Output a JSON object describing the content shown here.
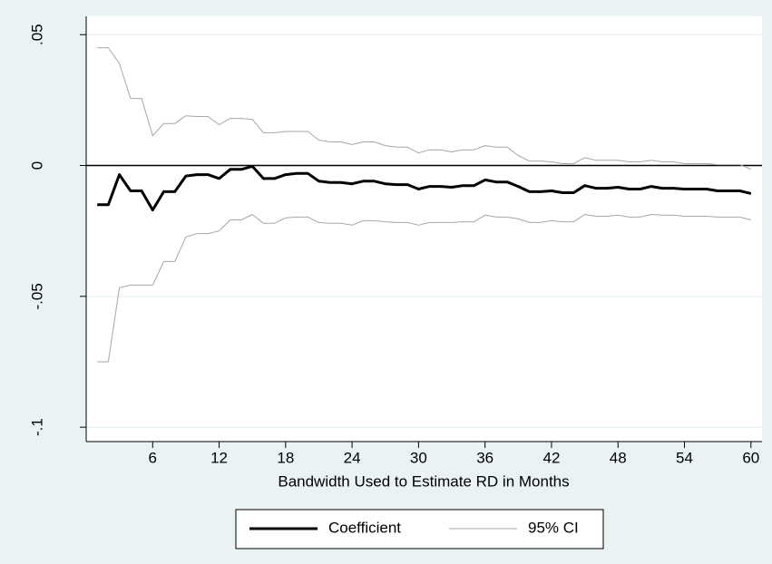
{
  "chart_data": {
    "type": "line",
    "x_label": "Bandwidth Used to Estimate RD in Months",
    "x": [
      1,
      2,
      3,
      4,
      5,
      6,
      7,
      8,
      9,
      10,
      11,
      12,
      13,
      14,
      15,
      16,
      17,
      18,
      19,
      20,
      21,
      22,
      23,
      24,
      25,
      26,
      27,
      28,
      29,
      30,
      31,
      32,
      33,
      34,
      35,
      36,
      37,
      38,
      39,
      40,
      41,
      42,
      43,
      44,
      45,
      46,
      47,
      48,
      49,
      50,
      51,
      52,
      53,
      54,
      55,
      56,
      57,
      58,
      59,
      60
    ],
    "series": [
      {
        "name": "Coefficient",
        "color": "#000000",
        "values": [
          -0.015,
          -0.015,
          -0.0035,
          -0.0097,
          -0.0097,
          -0.017,
          -0.01,
          -0.01,
          -0.004,
          -0.0035,
          -0.0035,
          -0.005,
          -0.0015,
          -0.0015,
          -0.0003,
          -0.005,
          -0.005,
          -0.0035,
          -0.003,
          -0.003,
          -0.006,
          -0.0065,
          -0.0065,
          -0.007,
          -0.006,
          -0.006,
          -0.007,
          -0.0073,
          -0.0073,
          -0.009,
          -0.008,
          -0.008,
          -0.0083,
          -0.0077,
          -0.0077,
          -0.0055,
          -0.0063,
          -0.0063,
          -0.008,
          -0.01,
          -0.01,
          -0.0097,
          -0.0104,
          -0.0104,
          -0.0077,
          -0.0087,
          -0.0087,
          -0.0083,
          -0.009,
          -0.009,
          -0.008,
          -0.0087,
          -0.0087,
          -0.009,
          -0.009,
          -0.009,
          -0.0097,
          -0.0097,
          -0.0097,
          -0.0107
        ]
      },
      {
        "name": "95% CI",
        "color": "#a6a6a6",
        "upper": [
          0.045,
          0.045,
          0.039,
          0.0256,
          0.0256,
          0.0114,
          0.016,
          0.016,
          0.019,
          0.0187,
          0.0187,
          0.0156,
          0.018,
          0.018,
          0.0176,
          0.0125,
          0.0125,
          0.013,
          0.013,
          0.013,
          0.0097,
          0.009,
          0.009,
          0.008,
          0.009,
          0.009,
          0.0076,
          0.007,
          0.007,
          0.0048,
          0.006,
          0.006,
          0.0052,
          0.006,
          0.006,
          0.0076,
          0.007,
          0.007,
          0.0038,
          0.0017,
          0.0017,
          0.0014,
          0.0007,
          0.0007,
          0.003,
          0.002,
          0.002,
          0.002,
          0.0014,
          0.0014,
          0.002,
          0.0014,
          0.0014,
          0.0007,
          0.0007,
          0.0007,
          0.0003,
          0.0003,
          0.0003,
          -0.0014
        ],
        "lower": [
          -0.075,
          -0.075,
          -0.0467,
          -0.0457,
          -0.0457,
          -0.0457,
          -0.0367,
          -0.0367,
          -0.0273,
          -0.026,
          -0.026,
          -0.025,
          -0.0208,
          -0.0208,
          -0.0187,
          -0.0221,
          -0.0221,
          -0.02,
          -0.0197,
          -0.0197,
          -0.0218,
          -0.0221,
          -0.0221,
          -0.0228,
          -0.0211,
          -0.0211,
          -0.0215,
          -0.0218,
          -0.0218,
          -0.0228,
          -0.0218,
          -0.0218,
          -0.0218,
          -0.0215,
          -0.0215,
          -0.019,
          -0.0197,
          -0.0197,
          -0.0204,
          -0.0218,
          -0.0218,
          -0.0211,
          -0.0215,
          -0.0215,
          -0.0187,
          -0.0194,
          -0.0194,
          -0.019,
          -0.0197,
          -0.0197,
          -0.0187,
          -0.019,
          -0.019,
          -0.0194,
          -0.0194,
          -0.0194,
          -0.0197,
          -0.0197,
          -0.0197,
          -0.0208
        ]
      }
    ],
    "xlim": [
      0,
      61
    ],
    "xticks": [
      6,
      12,
      18,
      24,
      30,
      36,
      42,
      48,
      54,
      60
    ],
    "ylim": [
      -0.1055,
      0.057
    ],
    "yticks": [
      {
        "value": -0.1,
        "label": "-.1"
      },
      {
        "value": -0.05,
        "label": "-.05"
      },
      0,
      {
        "value": 0.05,
        "label": ".05"
      }
    ],
    "reference_line": 0,
    "grid": true,
    "legend_position": "bottom"
  }
}
